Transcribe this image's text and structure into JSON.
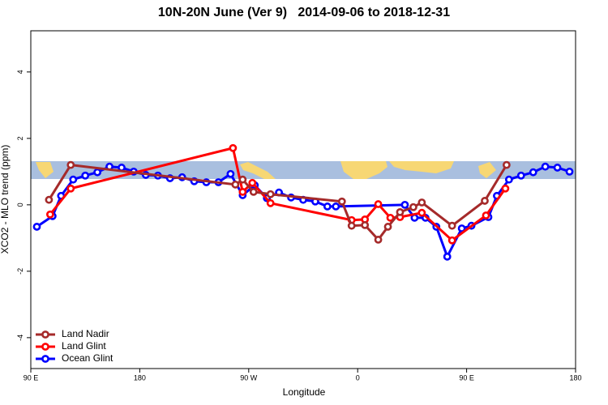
{
  "chart_data": {
    "type": "line",
    "title": "10N-20N June (Ver 9)   2014-09-06 to 2018-12-31",
    "x_label": "Longitude",
    "y_label": "XCO2 - MLO trend (ppm)",
    "xlim": [
      90,
      540
    ],
    "xticks": [
      {
        "value": 90,
        "label": "90 E"
      },
      {
        "value": 180,
        "label": "180"
      },
      {
        "value": 270,
        "label": "90 W"
      },
      {
        "value": 360,
        "label": "0"
      },
      {
        "value": 450,
        "label": "90 E"
      },
      {
        "value": 540,
        "label": "180"
      }
    ],
    "ylim": [
      -4.93,
      5.24
    ],
    "yticks": [
      -4,
      -2,
      0,
      2,
      4
    ],
    "legend": "bottom-left",
    "series": [
      {
        "name": "Land Nadir",
        "color": "#a52a2a",
        "x": [
          105,
          123,
          259,
          265,
          274,
          288,
          347,
          355,
          366,
          377,
          385,
          395,
          406,
          413,
          438,
          465,
          483
        ],
        "values": [
          0.15,
          1.2,
          0.61,
          0.76,
          0.39,
          0.32,
          0.1,
          -0.63,
          -0.61,
          -1.05,
          -0.66,
          -0.22,
          -0.07,
          0.07,
          -0.63,
          0.12,
          1.2
        ]
      },
      {
        "name": "Land Glint",
        "color": "#ff0000",
        "x": [
          106,
          123,
          257,
          265,
          273,
          288,
          355,
          366,
          377,
          387,
          395,
          413,
          438,
          466,
          482
        ],
        "values": [
          -0.29,
          0.49,
          1.71,
          0.39,
          0.66,
          0.05,
          -0.46,
          -0.44,
          0.02,
          -0.39,
          -0.37,
          -0.24,
          -1.07,
          -0.32,
          0.49
        ]
      },
      {
        "name": "Ocean Glint",
        "color": "#0000ff",
        "x": [
          95,
          108,
          115,
          125,
          135,
          145,
          155,
          165,
          175,
          185,
          195,
          205,
          215,
          225,
          235,
          245,
          255,
          265,
          275,
          285,
          295,
          305,
          315,
          325,
          335,
          342,
          399,
          407,
          416,
          425,
          434,
          446,
          454,
          468,
          475,
          485,
          495,
          505,
          515,
          525,
          535
        ],
        "values": [
          -0.66,
          -0.34,
          0.27,
          0.76,
          0.88,
          0.98,
          1.15,
          1.12,
          1.0,
          0.9,
          0.88,
          0.8,
          0.83,
          0.71,
          0.68,
          0.68,
          0.93,
          0.29,
          0.59,
          0.2,
          0.37,
          0.22,
          0.15,
          0.1,
          -0.05,
          -0.05,
          0,
          -0.39,
          -0.39,
          -0.66,
          -1.56,
          -0.71,
          -0.63,
          -0.37,
          0.27,
          0.76,
          0.88,
          0.98,
          1.15,
          1.12,
          1.0
        ]
      }
    ]
  }
}
